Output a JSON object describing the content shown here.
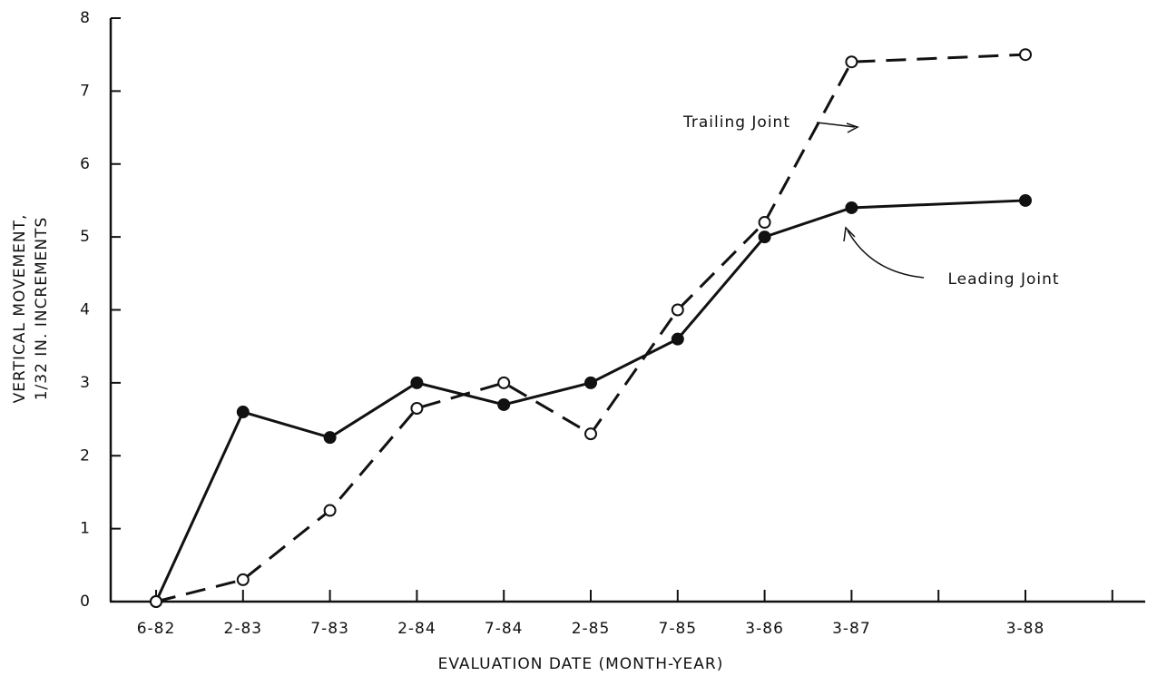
{
  "chart_data": {
    "type": "line",
    "categories": [
      "6-82",
      "2-83",
      "7-83",
      "2-84",
      "7-84",
      "2-85",
      "7-85",
      "3-86",
      "3-87",
      "3-88"
    ],
    "series": [
      {
        "name": "Leading Joint",
        "color": "#111111",
        "values": [
          0,
          2.6,
          2.25,
          3.0,
          2.7,
          3.0,
          3.6,
          5.0,
          5.4,
          5.5
        ]
      },
      {
        "name": "Trailing Joint",
        "color": "#111111",
        "values": [
          0,
          0.3,
          1.25,
          2.65,
          3.0,
          2.3,
          4.0,
          5.2,
          7.4,
          7.5
        ]
      }
    ],
    "xlabel": "EVALUATION DATE (MONTH-YEAR)",
    "ylabel": [
      "VERTICAL MOVEMENT,",
      "1/32 IN. INCREMENTS"
    ],
    "ylim": [
      0,
      8
    ],
    "yticks": [
      0,
      1,
      2,
      3,
      4,
      5,
      6,
      7,
      8
    ]
  }
}
